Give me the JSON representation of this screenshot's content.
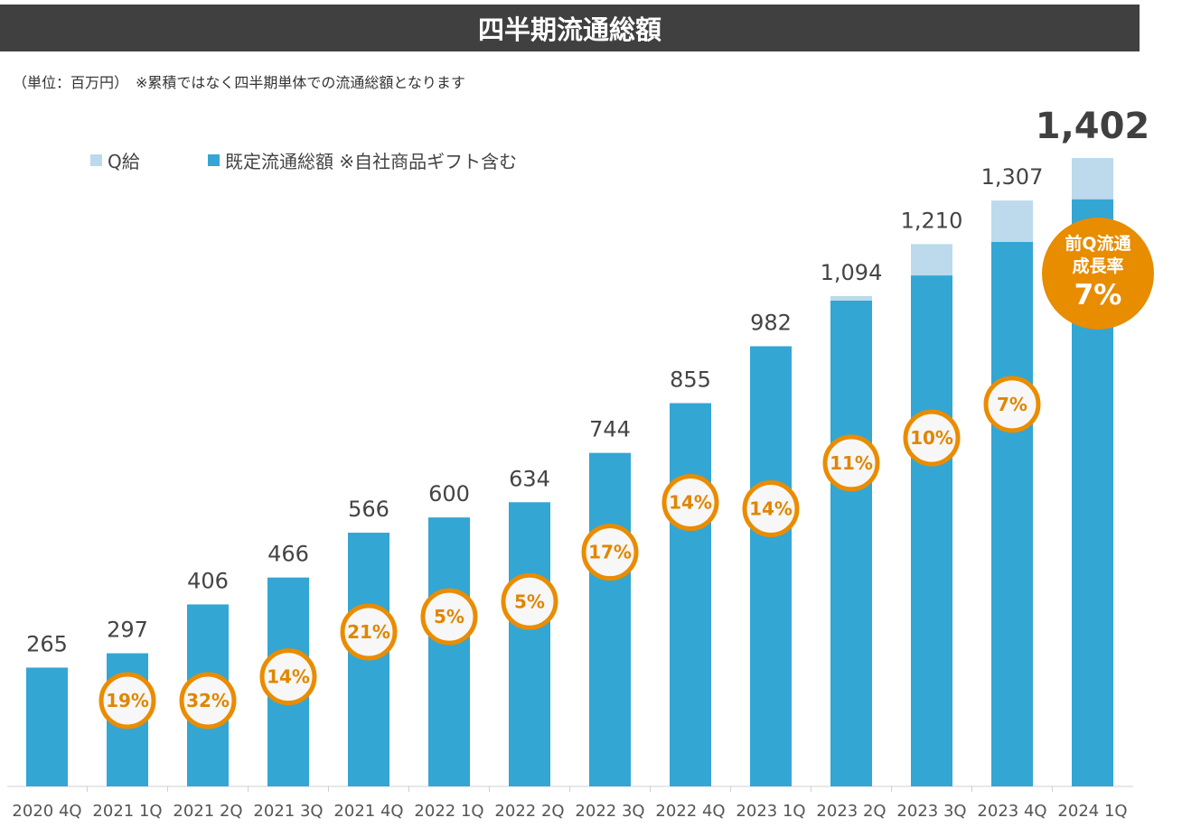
{
  "title": "四半期流通総額",
  "unit_note": "（単位：百万円）　※累積ではなく四半期単体での流通総額となります",
  "legend": {
    "q_pay_label": "Q給",
    "main_label": "既定流通総額 ※自社商品ギフト含む"
  },
  "callout": {
    "line1": "前Q流通",
    "line2": "成長率",
    "value": "7%"
  },
  "colors": {
    "main": "#33a6d4",
    "q_pay": "#bcdaeb",
    "circle_border": "#ea8c00",
    "circle_text": "#e08600",
    "circle_fill": "#f7f7f7",
    "callout_fill": "#e88c00",
    "title_bg": "#404040"
  },
  "chart_data": {
    "type": "bar",
    "stacked": true,
    "categories": [
      "2020 4Q",
      "2021 1Q",
      "2021 2Q",
      "2021 3Q",
      "2021 4Q",
      "2022 1Q",
      "2022 2Q",
      "2022 3Q",
      "2022 4Q",
      "2023 1Q",
      "2023 2Q",
      "2023 3Q",
      "2023 4Q",
      "2024 1Q"
    ],
    "series": [
      {
        "name": "既定流通総額 ※自社商品ギフト含む",
        "values": [
          265,
          297,
          406,
          466,
          566,
          600,
          634,
          744,
          855,
          982,
          1084,
          1140,
          1215,
          1310
        ]
      },
      {
        "name": "Q給",
        "values": [
          0,
          0,
          0,
          0,
          0,
          0,
          0,
          0,
          0,
          0,
          10,
          70,
          92,
          92
        ]
      }
    ],
    "totals": [
      "265",
      "297",
      "406",
      "466",
      "566",
      "600",
      "634",
      "744",
      "855",
      "982",
      "1,094",
      "1,210",
      "1,307",
      "1,402"
    ],
    "growth_rates": [
      null,
      "19%",
      "32%",
      "14%",
      "21%",
      "5%",
      "5%",
      "17%",
      "14%",
      "14%",
      "11%",
      "10%",
      "7%",
      null
    ],
    "ylim": [
      0,
      1402
    ]
  }
}
